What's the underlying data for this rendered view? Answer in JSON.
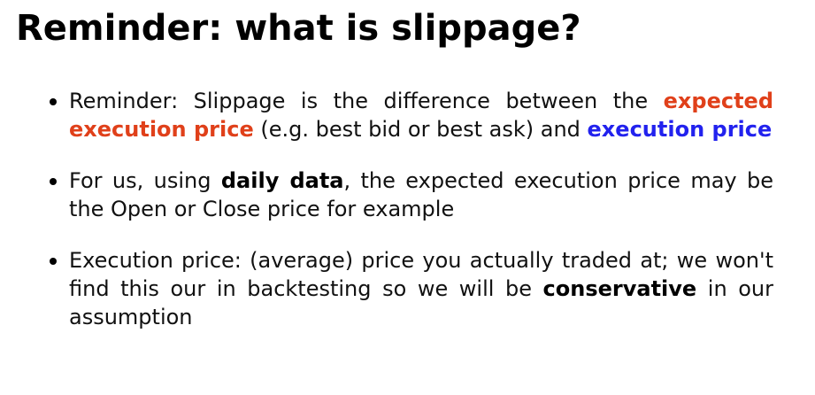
{
  "title": "Reminder: what is slippage?",
  "bullets": [
    {
      "part1": "Reminder: Slippage is the difference between the ",
      "highlight1": "expected execution price",
      "part2": " (e.g. best bid or best ask) and ",
      "highlight2": "execution price"
    },
    {
      "part1": "For us, using ",
      "bold": "daily data",
      "part2": ", the expected execution price may be the Open or Close price for example"
    },
    {
      "part1": "Execution price: (average) price you actually traded at; we won't find this our in backtesting so we will be ",
      "bold": "conservative",
      "part2": " in our assumption"
    }
  ],
  "colors": {
    "expected_execution_price": "#e0401a",
    "execution_price": "#2222ee"
  }
}
